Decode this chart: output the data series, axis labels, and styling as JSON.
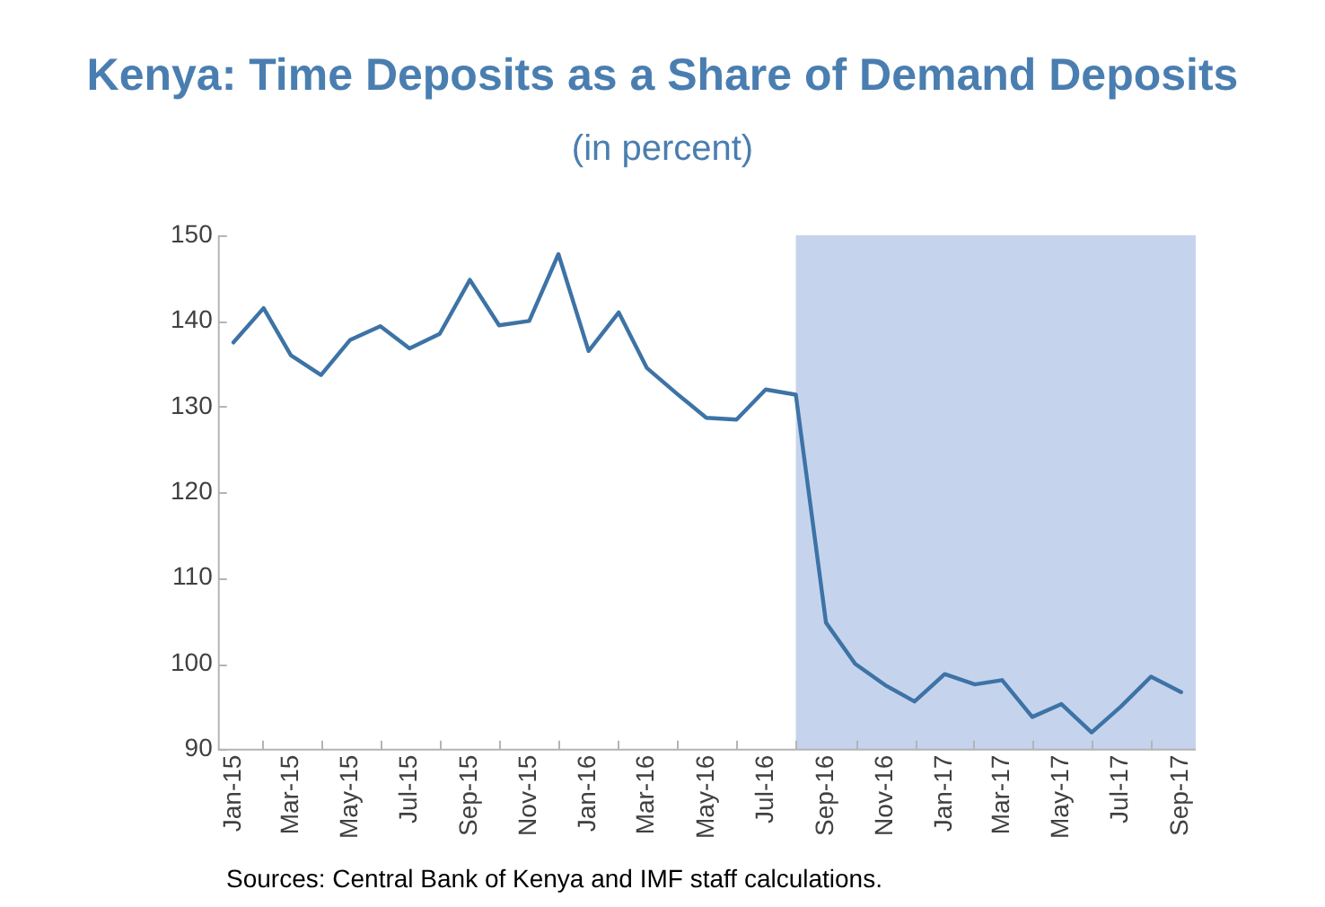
{
  "chart_data": {
    "type": "line",
    "title": "Kenya: Time Deposits as a Share of Demand Deposits",
    "subtitle": "(in percent)",
    "x": [
      "2015-01",
      "2015-02",
      "2015-03",
      "2015-04",
      "2015-05",
      "2015-06",
      "2015-07",
      "2015-08",
      "2015-09",
      "2015-10",
      "2015-11",
      "2015-12",
      "2016-01",
      "2016-02",
      "2016-03",
      "2016-04",
      "2016-05",
      "2016-06",
      "2016-07",
      "2016-08",
      "2016-09",
      "2016-10",
      "2016-11",
      "2016-12",
      "2017-01",
      "2017-02",
      "2017-03",
      "2017-04",
      "2017-05",
      "2017-06",
      "2017-07",
      "2017-08",
      "2017-09"
    ],
    "series": [
      {
        "color": "#3d73a6",
        "values": [
          137.5,
          141.5,
          136,
          133.7,
          137.8,
          139.4,
          136.8,
          138.5,
          144.8,
          139.5,
          140,
          147.8,
          136.5,
          141,
          134.5,
          131.5,
          128.7,
          128.5,
          132,
          131.4,
          104.8,
          100,
          97.5,
          95.6,
          98.8,
          97.6,
          98.1,
          93.8,
          95.3,
          92,
          95,
          98.5,
          96.7
        ]
      }
    ],
    "xlim": [
      "2014-12-16",
      "2017-09-16"
    ],
    "xticks": [
      {
        "value": "2015-01",
        "label": "Jan-15"
      },
      {
        "value": "2015-03",
        "label": "Mar-15"
      },
      {
        "value": "2015-05",
        "label": "May-15"
      },
      {
        "value": "2015-07",
        "label": "Jul-15"
      },
      {
        "value": "2015-09",
        "label": "Sep-15"
      },
      {
        "value": "2015-11",
        "label": "Nov-15"
      },
      {
        "value": "2016-01",
        "label": "Jan-16"
      },
      {
        "value": "2016-03",
        "label": "Mar-16"
      },
      {
        "value": "2016-05",
        "label": "May-16"
      },
      {
        "value": "2016-07",
        "label": "Jul-16"
      },
      {
        "value": "2016-09",
        "label": "Sep-16"
      },
      {
        "value": "2016-11",
        "label": "Nov-16"
      },
      {
        "value": "2017-01",
        "label": "Jan-17"
      },
      {
        "value": "2017-03",
        "label": "Mar-17"
      },
      {
        "value": "2017-05",
        "label": "May-17"
      },
      {
        "value": "2017-07",
        "label": "Jul-17"
      },
      {
        "value": "2017-09",
        "label": "Sep-17"
      }
    ],
    "ylim": [
      90,
      150
    ],
    "yticks": [
      90,
      100,
      110,
      120,
      130,
      140,
      150
    ],
    "bands": [
      {
        "axis": "x",
        "from": "2016-08",
        "to": "2017-09-16",
        "color": "#c5d4ec"
      }
    ],
    "annotations": [
      "Sources: Central Bank of Kenya and IMF staff calculations."
    ],
    "grid": false,
    "legend": false,
    "marker": "none",
    "line_style": "solid"
  }
}
